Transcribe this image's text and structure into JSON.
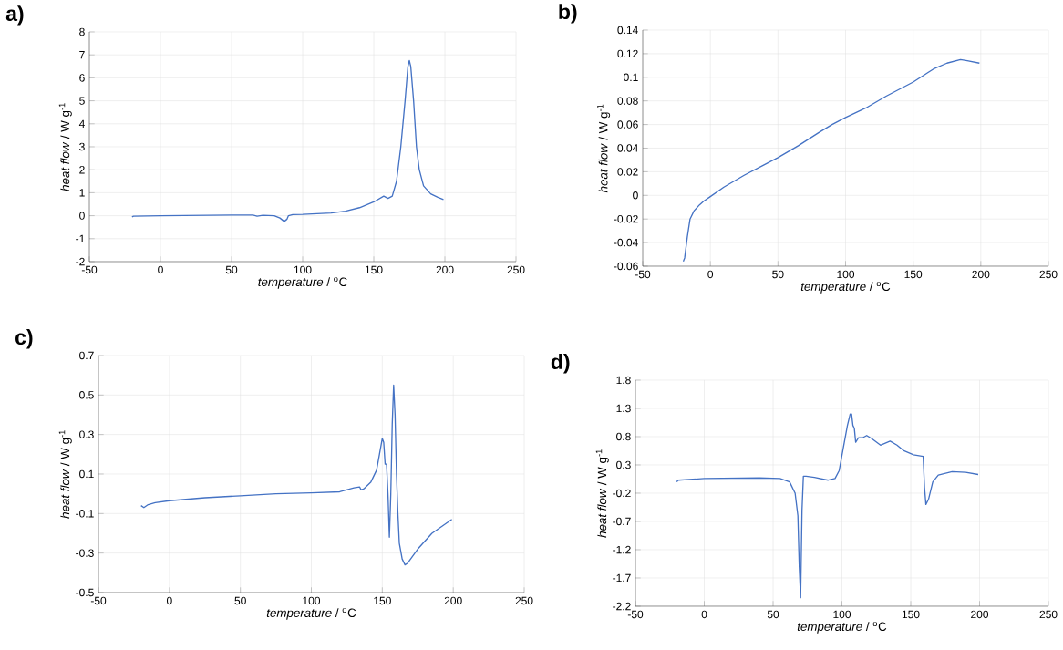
{
  "chart_data": [
    {
      "type": "line",
      "title": "a)",
      "xlabel": "*temperature* / $^{o}$C",
      "ylabel": "*heat flow* / W g$^{-1}$",
      "grid": true,
      "marker": "none",
      "line_style": "solid",
      "xlim": [
        -50,
        250
      ],
      "xticks": [
        -50,
        0,
        50,
        100,
        150,
        200,
        250
      ],
      "ylim": [
        -2,
        8
      ],
      "yticks": [
        -2,
        -1,
        0,
        1,
        2,
        3,
        4,
        5,
        6,
        7,
        8
      ],
      "series": [
        {
          "color": "#4472c4",
          "x": [
            -20,
            -19,
            0,
            50,
            65,
            68,
            72,
            80,
            84,
            87,
            89,
            90,
            93,
            100,
            120,
            130,
            140,
            150,
            157,
            160,
            163,
            166,
            169,
            172,
            174,
            175,
            176,
            178,
            180,
            182,
            185,
            190,
            195,
            199
          ],
          "values": [
            -0.05,
            -0.02,
            0,
            0.03,
            0.03,
            -0.02,
            0.02,
            0.0,
            -0.1,
            -0.25,
            -0.15,
            0.0,
            0.05,
            0.06,
            0.12,
            0.2,
            0.35,
            0.6,
            0.85,
            0.75,
            0.85,
            1.5,
            3,
            5,
            6.5,
            6.75,
            6.5,
            5,
            3,
            2,
            1.3,
            0.95,
            0.8,
            0.7
          ]
        }
      ]
    },
    {
      "type": "line",
      "title": "b)",
      "xlabel": "*temperature* / $^{o}$C",
      "ylabel": "*heat flow* / W g$^{-1}$",
      "grid": true,
      "marker": "none",
      "line_style": "solid",
      "xlim": [
        -50,
        250
      ],
      "xticks": [
        -50,
        0,
        50,
        100,
        150,
        200,
        250
      ],
      "ylim": [
        -0.06,
        0.14
      ],
      "yticks": [
        -0.06,
        -0.04,
        -0.02,
        0,
        0.02,
        0.04,
        0.06,
        0.08,
        0.1,
        0.12,
        0.14
      ],
      "series": [
        {
          "color": "#4472c4",
          "x": [
            -20,
            -19,
            -17,
            -15,
            -12,
            -8,
            -5,
            0,
            10,
            25,
            40,
            50,
            65,
            80,
            90,
            100,
            115,
            130,
            150,
            165,
            175,
            185,
            190,
            199
          ],
          "values": [
            -0.056,
            -0.053,
            -0.035,
            -0.02,
            -0.013,
            -0.008,
            -0.005,
            -0.001,
            0.007,
            0.017,
            0.026,
            0.032,
            0.042,
            0.053,
            0.06,
            0.066,
            0.074,
            0.084,
            0.096,
            0.107,
            0.112,
            0.115,
            0.114,
            0.112
          ]
        }
      ]
    },
    {
      "type": "line",
      "title": "c)",
      "xlabel": "*temperature* / $^{o}$C",
      "ylabel": "*heat flow* / W g$^{-1}$",
      "grid": true,
      "marker": "none",
      "line_style": "solid",
      "xlim": [
        -50,
        250
      ],
      "xticks": [
        -50,
        0,
        50,
        100,
        150,
        200,
        250
      ],
      "ylim": [
        -0.5,
        0.7
      ],
      "yticks": [
        -0.5,
        -0.3,
        -0.1,
        0.1,
        0.3,
        0.5,
        0.7
      ],
      "series": [
        {
          "color": "#4472c4",
          "x": [
            -20,
            -18,
            -15,
            -10,
            0,
            25,
            50,
            75,
            100,
            120,
            130,
            134,
            135,
            137,
            142,
            146,
            148,
            150,
            151,
            152,
            153,
            154,
            155,
            156,
            157,
            158,
            159,
            160,
            161,
            162,
            164,
            166,
            168,
            175,
            185,
            199
          ],
          "values": [
            -0.06,
            -0.07,
            -0.055,
            -0.045,
            -0.035,
            -0.02,
            -0.01,
            0.0,
            0.005,
            0.01,
            0.03,
            0.035,
            0.02,
            0.025,
            0.06,
            0.12,
            0.2,
            0.28,
            0.26,
            0.15,
            0.15,
            0.0,
            -0.22,
            0.0,
            0.35,
            0.55,
            0.4,
            0.1,
            -0.1,
            -0.25,
            -0.33,
            -0.36,
            -0.35,
            -0.28,
            -0.2,
            -0.13
          ]
        }
      ]
    },
    {
      "type": "line",
      "title": "d)",
      "xlabel": "*temperature* / $^{o}$C",
      "ylabel": "*heat flow* / W g$^{-1}$",
      "grid": true,
      "marker": "none",
      "line_style": "solid",
      "xlim": [
        -50,
        250
      ],
      "xticks": [
        -50,
        0,
        50,
        100,
        150,
        200,
        250
      ],
      "ylim": [
        -2.2,
        1.8
      ],
      "yticks": [
        -2.2,
        -1.7,
        -1.2,
        -0.7,
        -0.2,
        0.3,
        0.8,
        1.3,
        1.8
      ],
      "series": [
        {
          "color": "#4472c4",
          "x": [
            -20,
            -19,
            0,
            40,
            55,
            62,
            66,
            68,
            69,
            70,
            71,
            72,
            74,
            80,
            90,
            95,
            98,
            101,
            104,
            106,
            107,
            108,
            109,
            110,
            112,
            115,
            118,
            122,
            128,
            135,
            140,
            145,
            152,
            159,
            160,
            161,
            163,
            166,
            170,
            180,
            190,
            199
          ],
          "values": [
            0.0,
            0.03,
            0.06,
            0.07,
            0.06,
            0.0,
            -0.2,
            -0.6,
            -1.5,
            -2.05,
            -0.5,
            0.1,
            0.1,
            0.08,
            0.03,
            0.06,
            0.2,
            0.6,
            1.0,
            1.2,
            1.2,
            1.0,
            0.95,
            0.7,
            0.78,
            0.78,
            0.82,
            0.76,
            0.65,
            0.72,
            0.65,
            0.55,
            0.48,
            0.45,
            -0.1,
            -0.4,
            -0.3,
            0.0,
            0.12,
            0.18,
            0.17,
            0.13
          ]
        }
      ]
    }
  ]
}
